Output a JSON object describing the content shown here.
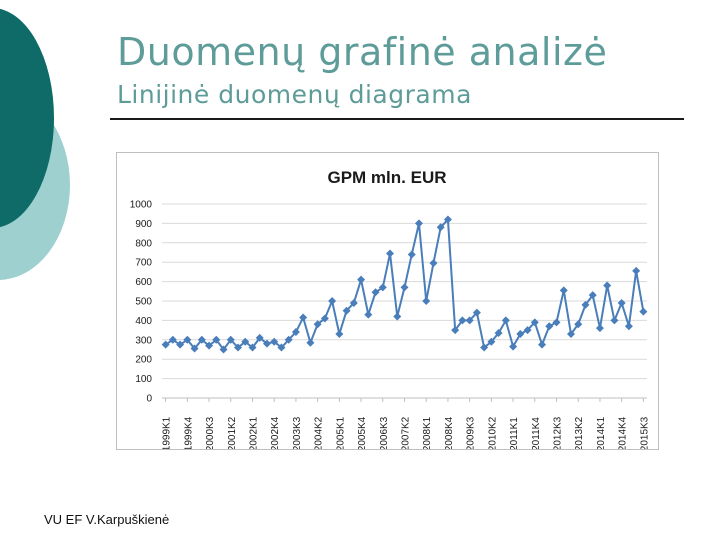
{
  "slide": {
    "title": "Duomenų grafinė analizė",
    "subtitle": "Linijinė duomenų diagrama",
    "footer": "VU EF V.Karpuškienė",
    "accent_dark": "#0f6b68",
    "accent_light": "#9fd0d0",
    "text_color": "#5e9c99"
  },
  "chart_data": {
    "type": "line",
    "title": "GPM mln. EUR",
    "xlabel": "",
    "ylabel": "",
    "ylim": [
      0,
      1000
    ],
    "yticks": [
      0,
      100,
      200,
      300,
      400,
      500,
      600,
      700,
      800,
      900,
      1000
    ],
    "grid": true,
    "legend": "none",
    "series_color": "#4a7ebb",
    "categories": [
      "1999K1",
      "1999K2",
      "1999K3",
      "1999K4",
      "2000K1",
      "2000K2",
      "2000K3",
      "2000K4",
      "2001K1",
      "2001K2",
      "2001K3",
      "2001K4",
      "2002K1",
      "2002K2",
      "2002K3",
      "2002K4",
      "2003K1",
      "2003K2",
      "2003K3",
      "2003K4",
      "2004K1",
      "2004K2",
      "2004K3",
      "2004K4",
      "2005K1",
      "2005K2",
      "2005K3",
      "2005K4",
      "2006K1",
      "2006K2",
      "2006K3",
      "2006K4",
      "2007K1",
      "2007K2",
      "2007K3",
      "2007K4",
      "2008K1",
      "2008K2",
      "2008K3",
      "2008K4",
      "2009K1",
      "2009K2",
      "2009K3",
      "2009K4",
      "2010K1",
      "2010K2",
      "2010K3",
      "2010K4",
      "2011K1",
      "2011K2",
      "2011K3",
      "2011K4",
      "2012K1",
      "2012K2",
      "2012K3",
      "2012K4",
      "2013K1",
      "2013K2",
      "2013K3",
      "2013K4",
      "2014K1",
      "2014K2",
      "2014K3",
      "2014K4",
      "2015K1",
      "2015K2",
      "2015K3"
    ],
    "tick_labels": [
      "1999K1",
      "1999K4",
      "2000K3",
      "2001K2",
      "2002K1",
      "2002K4",
      "2003K3",
      "2004K2",
      "2005K1",
      "2005K4",
      "2006K3",
      "2007K2",
      "2008K1",
      "2008K4",
      "2009K3",
      "2010K2",
      "2011K1",
      "2011K4",
      "2012K3",
      "2013K2",
      "2014K1",
      "2014K4",
      "2015K3"
    ],
    "series": [
      {
        "values": [
          275,
          300,
          275,
          300,
          255,
          300,
          270,
          300,
          250,
          300,
          260,
          290,
          260,
          310,
          280,
          290,
          260,
          300,
          340,
          415,
          285,
          380,
          410,
          500,
          330,
          450,
          490,
          610,
          430,
          545,
          570,
          745,
          420,
          570,
          740,
          900,
          500,
          695,
          880,
          920,
          350,
          400,
          400,
          440,
          260,
          290,
          335,
          400,
          265,
          330,
          350,
          390,
          275,
          370,
          390,
          555,
          330,
          380,
          480,
          530,
          360,
          580,
          400,
          490,
          370,
          655,
          445
        ]
      }
    ]
  }
}
